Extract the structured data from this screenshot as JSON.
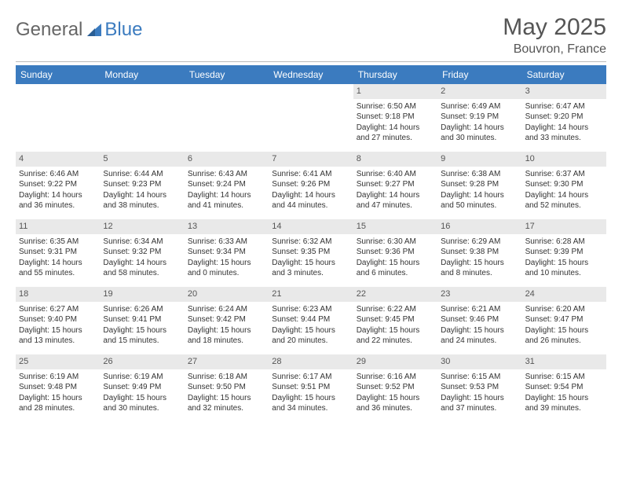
{
  "brand": {
    "general": "General",
    "blue": "Blue"
  },
  "title": "May 2025",
  "location": "Bouvron, France",
  "header_bg": "#3b7bbf",
  "daynum_bg": "#e9e9e9",
  "page_bg": "#ffffff",
  "dow": [
    "Sunday",
    "Monday",
    "Tuesday",
    "Wednesday",
    "Thursday",
    "Friday",
    "Saturday"
  ],
  "leading_blanks": 4,
  "days": [
    {
      "n": "1",
      "sr": "6:50 AM",
      "ss": "9:18 PM",
      "dl": "14 hours and 27 minutes."
    },
    {
      "n": "2",
      "sr": "6:49 AM",
      "ss": "9:19 PM",
      "dl": "14 hours and 30 minutes."
    },
    {
      "n": "3",
      "sr": "6:47 AM",
      "ss": "9:20 PM",
      "dl": "14 hours and 33 minutes."
    },
    {
      "n": "4",
      "sr": "6:46 AM",
      "ss": "9:22 PM",
      "dl": "14 hours and 36 minutes."
    },
    {
      "n": "5",
      "sr": "6:44 AM",
      "ss": "9:23 PM",
      "dl": "14 hours and 38 minutes."
    },
    {
      "n": "6",
      "sr": "6:43 AM",
      "ss": "9:24 PM",
      "dl": "14 hours and 41 minutes."
    },
    {
      "n": "7",
      "sr": "6:41 AM",
      "ss": "9:26 PM",
      "dl": "14 hours and 44 minutes."
    },
    {
      "n": "8",
      "sr": "6:40 AM",
      "ss": "9:27 PM",
      "dl": "14 hours and 47 minutes."
    },
    {
      "n": "9",
      "sr": "6:38 AM",
      "ss": "9:28 PM",
      "dl": "14 hours and 50 minutes."
    },
    {
      "n": "10",
      "sr": "6:37 AM",
      "ss": "9:30 PM",
      "dl": "14 hours and 52 minutes."
    },
    {
      "n": "11",
      "sr": "6:35 AM",
      "ss": "9:31 PM",
      "dl": "14 hours and 55 minutes."
    },
    {
      "n": "12",
      "sr": "6:34 AM",
      "ss": "9:32 PM",
      "dl": "14 hours and 58 minutes."
    },
    {
      "n": "13",
      "sr": "6:33 AM",
      "ss": "9:34 PM",
      "dl": "15 hours and 0 minutes."
    },
    {
      "n": "14",
      "sr": "6:32 AM",
      "ss": "9:35 PM",
      "dl": "15 hours and 3 minutes."
    },
    {
      "n": "15",
      "sr": "6:30 AM",
      "ss": "9:36 PM",
      "dl": "15 hours and 6 minutes."
    },
    {
      "n": "16",
      "sr": "6:29 AM",
      "ss": "9:38 PM",
      "dl": "15 hours and 8 minutes."
    },
    {
      "n": "17",
      "sr": "6:28 AM",
      "ss": "9:39 PM",
      "dl": "15 hours and 10 minutes."
    },
    {
      "n": "18",
      "sr": "6:27 AM",
      "ss": "9:40 PM",
      "dl": "15 hours and 13 minutes."
    },
    {
      "n": "19",
      "sr": "6:26 AM",
      "ss": "9:41 PM",
      "dl": "15 hours and 15 minutes."
    },
    {
      "n": "20",
      "sr": "6:24 AM",
      "ss": "9:42 PM",
      "dl": "15 hours and 18 minutes."
    },
    {
      "n": "21",
      "sr": "6:23 AM",
      "ss": "9:44 PM",
      "dl": "15 hours and 20 minutes."
    },
    {
      "n": "22",
      "sr": "6:22 AM",
      "ss": "9:45 PM",
      "dl": "15 hours and 22 minutes."
    },
    {
      "n": "23",
      "sr": "6:21 AM",
      "ss": "9:46 PM",
      "dl": "15 hours and 24 minutes."
    },
    {
      "n": "24",
      "sr": "6:20 AM",
      "ss": "9:47 PM",
      "dl": "15 hours and 26 minutes."
    },
    {
      "n": "25",
      "sr": "6:19 AM",
      "ss": "9:48 PM",
      "dl": "15 hours and 28 minutes."
    },
    {
      "n": "26",
      "sr": "6:19 AM",
      "ss": "9:49 PM",
      "dl": "15 hours and 30 minutes."
    },
    {
      "n": "27",
      "sr": "6:18 AM",
      "ss": "9:50 PM",
      "dl": "15 hours and 32 minutes."
    },
    {
      "n": "28",
      "sr": "6:17 AM",
      "ss": "9:51 PM",
      "dl": "15 hours and 34 minutes."
    },
    {
      "n": "29",
      "sr": "6:16 AM",
      "ss": "9:52 PM",
      "dl": "15 hours and 36 minutes."
    },
    {
      "n": "30",
      "sr": "6:15 AM",
      "ss": "9:53 PM",
      "dl": "15 hours and 37 minutes."
    },
    {
      "n": "31",
      "sr": "6:15 AM",
      "ss": "9:54 PM",
      "dl": "15 hours and 39 minutes."
    }
  ],
  "labels": {
    "sunrise": "Sunrise: ",
    "sunset": "Sunset: ",
    "daylight": "Daylight: "
  }
}
